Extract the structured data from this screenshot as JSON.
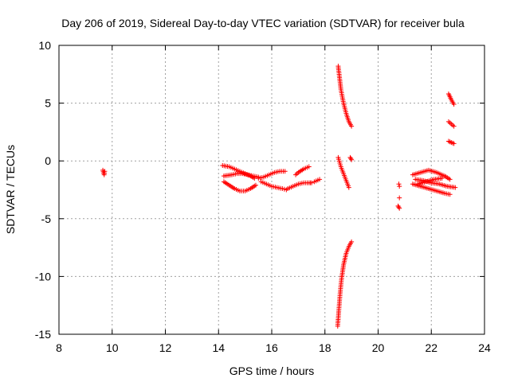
{
  "chart_data": {
    "type": "scatter",
    "title": "Day 206 of 2019, Sidereal Day-to-day VTEC variation (SDTVAR) for receiver bula",
    "xlabel": "GPS time / hours",
    "ylabel": "SDTVAR / TECUs",
    "xlim": [
      8,
      24
    ],
    "ylim": [
      -15,
      10
    ],
    "xticks": [
      8,
      10,
      12,
      14,
      16,
      18,
      20,
      22,
      24
    ],
    "yticks": [
      -15,
      -10,
      -5,
      0,
      5,
      10
    ],
    "grid": true,
    "marker": "+",
    "color": "#ff0000",
    "series": [
      {
        "name": "SDTVAR",
        "segments": [
          {
            "x": [
              9.65,
              9.7,
              9.72
            ],
            "y": [
              -0.8,
              -1.2,
              -0.9
            ]
          },
          {
            "x": [
              14.15,
              14.4,
              14.6,
              14.8,
              15.0,
              15.2,
              15.35
            ],
            "y": [
              -0.4,
              -0.5,
              -0.7,
              -0.9,
              -1.1,
              -1.3,
              -1.5
            ]
          },
          {
            "x": [
              14.2,
              14.4,
              14.6,
              14.8,
              15.0,
              15.2,
              15.4
            ],
            "y": [
              -1.8,
              -2.1,
              -2.4,
              -2.6,
              -2.6,
              -2.4,
              -2.1
            ]
          },
          {
            "x": [
              14.2,
              14.5,
              14.7,
              14.9,
              15.1,
              15.3,
              15.5
            ],
            "y": [
              -1.3,
              -1.2,
              -1.1,
              -1.1,
              -1.2,
              -1.3,
              -1.4
            ]
          },
          {
            "x": [
              15.5,
              15.7,
              15.9,
              16.1,
              16.3,
              16.5
            ],
            "y": [
              -1.5,
              -1.4,
              -1.2,
              -1.0,
              -0.9,
              -0.9
            ]
          },
          {
            "x": [
              15.6,
              15.8,
              16.0,
              16.2,
              16.4,
              16.55
            ],
            "y": [
              -1.8,
              -2.0,
              -2.2,
              -2.3,
              -2.4,
              -2.5
            ]
          },
          {
            "x": [
              16.6,
              16.8,
              17.0,
              17.2,
              17.4,
              17.5
            ],
            "y": [
              -2.4,
              -2.2,
              -2.0,
              -1.9,
              -1.9,
              -1.9
            ]
          },
          {
            "x": [
              16.9,
              17.0,
              17.2,
              17.4
            ],
            "y": [
              -1.2,
              -1.0,
              -0.7,
              -0.5
            ]
          },
          {
            "x": [
              17.6,
              17.8
            ],
            "y": [
              -1.8,
              -1.6
            ]
          },
          {
            "x": [
              18.5,
              18.55,
              18.6,
              18.7,
              18.8,
              18.9,
              19.0
            ],
            "y": [
              8.2,
              7.2,
              6.2,
              5.0,
              4.1,
              3.4,
              3.0
            ]
          },
          {
            "x": [
              18.5,
              18.6,
              18.7,
              18.8,
              18.9
            ],
            "y": [
              0.3,
              -0.5,
              -1.1,
              -1.7,
              -2.3
            ]
          },
          {
            "x": [
              18.95,
              19.0
            ],
            "y": [
              0.3,
              0.1
            ]
          },
          {
            "x": [
              18.48,
              18.52,
              18.57,
              18.62,
              18.7,
              18.8,
              18.9,
              19.0
            ],
            "y": [
              -14.3,
              -13.0,
              -11.5,
              -10.3,
              -9.0,
              -8.0,
              -7.4,
              -7.0
            ]
          },
          {
            "x": [
              20.78,
              20.8
            ],
            "y": [
              -2.0,
              -2.2
            ]
          },
          {
            "x": [
              20.8
            ],
            "y": [
              -3.2
            ]
          },
          {
            "x": [
              20.75,
              20.8
            ],
            "y": [
              -3.9,
              -4.1
            ]
          },
          {
            "x": [
              21.3,
              21.6,
              21.9,
              22.2,
              22.5,
              22.7
            ],
            "y": [
              -1.2,
              -1.0,
              -0.8,
              -1.0,
              -1.3,
              -1.6
            ]
          },
          {
            "x": [
              21.3,
              21.6,
              21.9,
              22.2,
              22.5,
              22.7
            ],
            "y": [
              -2.0,
              -2.2,
              -2.4,
              -2.6,
              -2.8,
              -2.9
            ]
          },
          {
            "x": [
              21.4,
              21.7,
              22.0,
              22.3,
              22.6,
              22.9
            ],
            "y": [
              -1.6,
              -1.7,
              -1.9,
              -2.0,
              -2.2,
              -2.3
            ]
          },
          {
            "x": [
              21.5,
              21.8,
              22.1,
              22.4
            ],
            "y": [
              -2.0,
              -1.8,
              -1.6,
              -1.5
            ]
          },
          {
            "x": [
              22.65,
              22.75,
              22.85
            ],
            "y": [
              5.8,
              5.3,
              4.9
            ]
          },
          {
            "x": [
              22.65,
              22.75,
              22.85
            ],
            "y": [
              3.4,
              3.2,
              3.0
            ]
          },
          {
            "x": [
              22.65,
              22.75,
              22.85
            ],
            "y": [
              1.7,
              1.6,
              1.5
            ]
          }
        ]
      }
    ]
  }
}
